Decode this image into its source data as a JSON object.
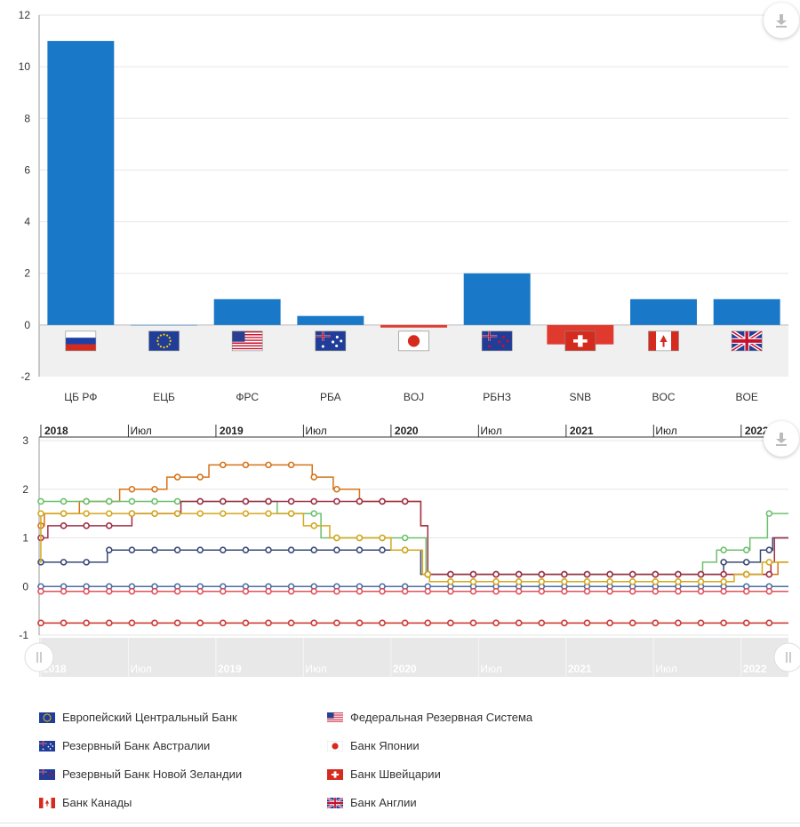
{
  "colors": {
    "positive": "#1a78c8",
    "negative": "#e03a2e",
    "flag_band": "#f0f0f0",
    "axis": "#333333",
    "grid": "#e6e6e6",
    "nav_band": "#e8e8e8"
  },
  "chart_data": [
    {
      "type": "bar",
      "categories": [
        "ЦБ РФ",
        "ЕЦБ",
        "ФРС",
        "РБА",
        "BOJ",
        "РБНЗ",
        "SNB",
        "BOC",
        "BOE"
      ],
      "values": [
        11,
        0,
        1,
        0.35,
        -0.1,
        2,
        -0.75,
        1,
        1
      ],
      "flags": [
        "ru",
        "eu",
        "us",
        "au",
        "jp",
        "nz",
        "ch",
        "ca",
        "gb"
      ],
      "yticks": [
        -2,
        0,
        2,
        4,
        6,
        8,
        10,
        12
      ],
      "ylim": [
        -2,
        12
      ],
      "title": "",
      "xlabel": "",
      "ylabel": ""
    },
    {
      "type": "line",
      "x_axis_labels": [
        {
          "label": "2018",
          "bold": true,
          "x": 2018.0
        },
        {
          "label": "Июл",
          "bold": false,
          "x": 2018.5
        },
        {
          "label": "2019",
          "bold": true,
          "x": 2019.0
        },
        {
          "label": "Июл",
          "bold": false,
          "x": 2019.5
        },
        {
          "label": "2020",
          "bold": true,
          "x": 2020.0
        },
        {
          "label": "Июл",
          "bold": false,
          "x": 2020.5
        },
        {
          "label": "2021",
          "bold": true,
          "x": 2021.0
        },
        {
          "label": "Июл",
          "bold": false,
          "x": 2021.5
        },
        {
          "label": "2022",
          "bold": true,
          "x": 2022.0
        }
      ],
      "xlim": [
        2017.99,
        2022.27
      ],
      "yticks": [
        -1,
        0,
        1,
        2,
        3
      ],
      "ylim": [
        -1,
        3
      ],
      "series": [
        {
          "name": "Европейский Центральный Банк",
          "color": "#4a6fa5",
          "steps": [
            [
              2017.99,
              0
            ],
            [
              2022.27,
              0
            ]
          ]
        },
        {
          "name": "Федеральная Резервная Система",
          "color": "#d4731a",
          "steps": [
            [
              2017.99,
              1.25
            ],
            [
              2018.02,
              1.5
            ],
            [
              2018.22,
              1.75
            ],
            [
              2018.45,
              2.0
            ],
            [
              2018.72,
              2.25
            ],
            [
              2018.96,
              2.5
            ],
            [
              2019.55,
              2.25
            ],
            [
              2019.67,
              2.0
            ],
            [
              2019.82,
              1.75
            ],
            [
              2020.17,
              1.25
            ],
            [
              2020.21,
              0.25
            ],
            [
              2022.21,
              0.5
            ]
          ]
        },
        {
          "name": "Резервный Банк Австралии",
          "color": "#3a4a78",
          "steps": [
            [
              2017.99,
              0.5
            ],
            [
              2018.02,
              0.5
            ],
            [
              2018.38,
              0.75
            ],
            [
              2020.17,
              0.25
            ],
            [
              2021.9,
              0.5
            ],
            [
              2022.11,
              0.75
            ],
            [
              2022.18,
              1.0
            ]
          ]
        },
        {
          "name": "Банк Японии",
          "color": "#e0505a",
          "steps": [
            [
              2017.99,
              -0.1
            ],
            [
              2022.27,
              -0.1
            ]
          ]
        },
        {
          "name": "Резервный Банк Новой Зеландии",
          "color": "#6dc06d",
          "steps": [
            [
              2017.99,
              1.75
            ],
            [
              2019.35,
              1.5
            ],
            [
              2019.6,
              1.0
            ],
            [
              2020.2,
              0.25
            ],
            [
              2021.78,
              0.5
            ],
            [
              2021.86,
              0.75
            ],
            [
              2022.05,
              1.0
            ],
            [
              2022.15,
              1.5
            ]
          ]
        },
        {
          "name": "Банк Швейцарии",
          "color": "#d23c3c",
          "steps": [
            [
              2017.99,
              -0.75
            ],
            [
              2022.27,
              -0.75
            ]
          ]
        },
        {
          "name": "Банк Канады",
          "color": "#a03048",
          "steps": [
            [
              2017.99,
              1.0
            ],
            [
              2018.04,
              1.25
            ],
            [
              2018.52,
              1.5
            ],
            [
              2018.8,
              1.75
            ],
            [
              2020.17,
              1.25
            ],
            [
              2020.21,
              0.25
            ],
            [
              2022.17,
              0.5
            ],
            [
              2022.19,
              1.0
            ]
          ]
        },
        {
          "name": "Банк Англии",
          "color": "#d4a81e",
          "steps": [
            [
              2017.99,
              0.5
            ],
            [
              2018.0,
              1.5
            ],
            [
              2019.5,
              1.25
            ],
            [
              2019.65,
              1.0
            ],
            [
              2020.0,
              0.75
            ],
            [
              2020.18,
              0.25
            ],
            [
              2020.22,
              0.1
            ],
            [
              2021.96,
              0.25
            ],
            [
              2022.12,
              0.5
            ]
          ]
        }
      ],
      "olive_series": {
        "color": "#9aa032",
        "steps": [
          [
            2017.99,
            -0.75
          ],
          [
            2022.27,
            -0.75
          ]
        ]
      }
    }
  ],
  "legend": [
    {
      "name": "Европейский Центральный Банк",
      "flag": "eu"
    },
    {
      "name": "Федеральная Резервная Система",
      "flag": "us"
    },
    {
      "name": "Резервный Банк Австралии",
      "flag": "au"
    },
    {
      "name": "Банк Японии",
      "flag": "jp"
    },
    {
      "name": "Резервный Банк Новой Зеландии",
      "flag": "nz"
    },
    {
      "name": "Банк Швейцарии",
      "flag": "ch"
    },
    {
      "name": "Банк Канады",
      "flag": "ca"
    },
    {
      "name": "Банк Англии",
      "flag": "gb"
    }
  ],
  "icons": {
    "download": "download-icon",
    "nav_handle": "grip-icon"
  }
}
